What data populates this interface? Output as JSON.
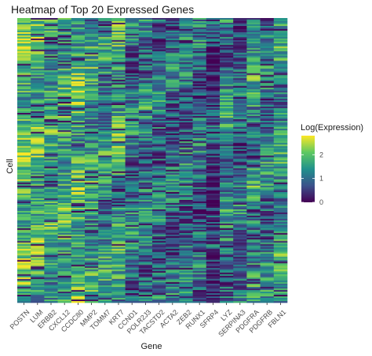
{
  "chart_data": {
    "type": "heatmap",
    "title": "Heatmap of Top 20 Expressed Genes",
    "xlabel": "Gene",
    "ylabel": "Cell",
    "genes": [
      "POSTN",
      "LUM",
      "ERBB2",
      "CXCL12",
      "CCDC80",
      "MMP2",
      "TOMM7",
      "KRT7",
      "CCND1",
      "POLR2J3",
      "TACSTD2",
      "ACTA2",
      "ZEB2",
      "RUNX1",
      "SFRP4",
      "LYZ",
      "SERPINA3",
      "PDGFRA",
      "PDGFRB",
      "FBLN1"
    ],
    "gene_mean_expression": [
      1.9,
      1.8,
      1.6,
      1.7,
      1.8,
      1.5,
      1.3,
      1.6,
      1.1,
      1.2,
      1.1,
      1.0,
      1.1,
      1.0,
      0.5,
      1.2,
      1.0,
      1.4,
      1.2,
      1.4
    ],
    "n_cells": 180,
    "legend": {
      "title": "Log(Expression)",
      "placement": "right",
      "range": [
        0,
        2.8
      ],
      "ticks": [
        {
          "value": 2,
          "label": "2"
        },
        {
          "value": 1,
          "label": "1"
        },
        {
          "value": 0,
          "label": "0"
        }
      ]
    },
    "colormap": [
      "#440154",
      "#3b528b",
      "#21918c",
      "#5ec962",
      "#fde725"
    ]
  }
}
